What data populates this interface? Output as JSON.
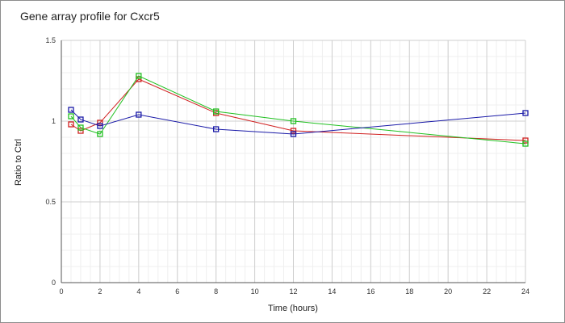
{
  "chart_data": {
    "type": "line",
    "title": "Gene array profile for Cxcr5",
    "xlabel": "Time (hours)",
    "ylabel": "Ratio to Ctrl",
    "xlim": [
      0,
      24
    ],
    "ylim": [
      0,
      1.5
    ],
    "xticks": [
      0,
      2,
      4,
      6,
      8,
      10,
      12,
      14,
      16,
      18,
      20,
      22,
      24
    ],
    "yticks": [
      0,
      0.5,
      1,
      1.5
    ],
    "ytick_labels": [
      "0",
      "0.5",
      "1",
      "1.5"
    ],
    "grid": true,
    "legend": "none",
    "marker": "square",
    "series": [
      {
        "color": "#d02020",
        "points": [
          [
            0.5,
            0.98
          ],
          [
            1,
            0.94
          ],
          [
            2,
            0.99
          ],
          [
            4,
            1.26
          ],
          [
            8,
            1.05
          ],
          [
            12,
            0.94
          ],
          [
            24,
            0.88
          ]
        ]
      },
      {
        "color": "#20c020",
        "points": [
          [
            0.5,
            1.03
          ],
          [
            1,
            0.96
          ],
          [
            2,
            0.92
          ],
          [
            4,
            1.28
          ],
          [
            8,
            1.06
          ],
          [
            12,
            1.0
          ],
          [
            24,
            0.86
          ]
        ]
      },
      {
        "color": "#1a1aa8",
        "points": [
          [
            0.5,
            1.07
          ],
          [
            1,
            1.01
          ],
          [
            2,
            0.97
          ],
          [
            4,
            1.04
          ],
          [
            8,
            0.95
          ],
          [
            12,
            0.92
          ],
          [
            24,
            1.05
          ]
        ]
      }
    ]
  }
}
